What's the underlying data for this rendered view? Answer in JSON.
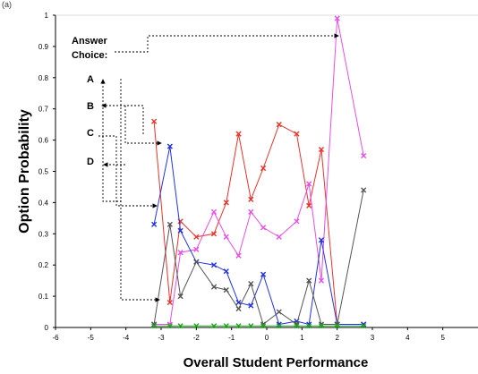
{
  "panel_label": "(a)",
  "chart_data": {
    "type": "line",
    "title": "",
    "xlabel": "Overall Student Performance",
    "ylabel": "Option Probability",
    "xlim": [
      -6,
      6
    ],
    "ylim": [
      0,
      1
    ],
    "xticks": [
      -6,
      -5,
      -4,
      -3,
      -2,
      -1,
      0,
      1,
      2,
      3,
      4,
      5
    ],
    "yticks": [
      0,
      0.1,
      0.2,
      0.3,
      0.4,
      0.5,
      0.6,
      0.7,
      0.8,
      0.9,
      1
    ],
    "grid": false,
    "legend_title": [
      "Answer",
      "Choice:"
    ],
    "legend_labels": [
      "A",
      "B",
      "C",
      "D"
    ],
    "series": [
      {
        "name": "C",
        "color": "#e8332a",
        "x": [
          -3.2,
          -2.75,
          -2.45,
          -2.0,
          -1.5,
          -1.15,
          -0.8,
          -0.45,
          -0.1,
          0.35,
          0.85,
          1.2,
          1.55,
          2.0,
          2.75
        ],
        "y": [
          0.66,
          0.08,
          0.34,
          0.29,
          0.3,
          0.4,
          0.62,
          0.41,
          0.51,
          0.65,
          0.62,
          0.39,
          0.57,
          0.01,
          0.01
        ]
      },
      {
        "name": "A",
        "color": "#e64ee6",
        "x": [
          -3.2,
          -2.75,
          -2.45,
          -2.0,
          -1.5,
          -1.15,
          -0.8,
          -0.45,
          -0.1,
          0.35,
          0.85,
          1.2,
          1.55,
          2.0,
          2.75
        ],
        "y": [
          0.01,
          0.01,
          0.24,
          0.25,
          0.37,
          0.29,
          0.23,
          0.37,
          0.32,
          0.29,
          0.34,
          0.46,
          0.15,
          0.99,
          0.55
        ]
      },
      {
        "name": "B",
        "color": "#2233dd",
        "x": [
          -3.2,
          -2.75,
          -2.45,
          -2.0,
          -1.5,
          -1.15,
          -0.8,
          -0.45,
          -0.1,
          0.35,
          0.85,
          1.2,
          1.55,
          2.0,
          2.75
        ],
        "y": [
          0.33,
          0.58,
          0.31,
          0.21,
          0.2,
          0.18,
          0.08,
          0.07,
          0.17,
          0.01,
          0.02,
          0.01,
          0.28,
          0.01,
          0.01
        ]
      },
      {
        "name": "D",
        "color": "#555555",
        "x": [
          -3.2,
          -2.75,
          -2.45,
          -2.0,
          -1.5,
          -1.15,
          -0.8,
          -0.45,
          -0.1,
          0.35,
          0.85,
          1.2,
          1.55,
          2.0,
          2.75
        ],
        "y": [
          0.01,
          0.33,
          0.1,
          0.21,
          0.13,
          0.12,
          0.06,
          0.14,
          0.01,
          0.05,
          0.01,
          0.15,
          0.01,
          0.01,
          0.44
        ]
      },
      {
        "name": "",
        "color": "#22aa22",
        "x": [
          -3.2,
          -2.75,
          -2.45,
          -2.0,
          -1.5,
          -1.15,
          -0.8,
          -0.45,
          -0.1,
          0.35,
          0.85,
          1.2,
          1.55,
          2.0,
          2.75
        ],
        "y": [
          0.005,
          0.005,
          0.005,
          0.005,
          0.005,
          0.005,
          0.005,
          0.005,
          0.005,
          0.005,
          0.005,
          0.005,
          0.005,
          0.005,
          0.005
        ]
      }
    ]
  }
}
